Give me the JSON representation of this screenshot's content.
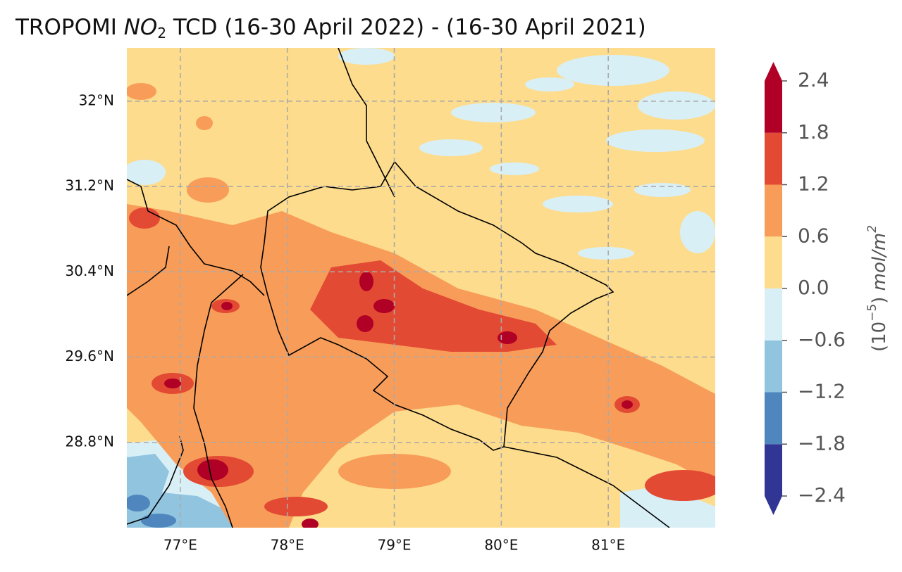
{
  "title": {
    "prefix": "TROPOMI ",
    "species": "NO",
    "subscript": "2",
    "suffix": " TCD (16-30 April 2022) - (16-30 April 2021)"
  },
  "map": {
    "xlim": [
      76.5,
      82
    ],
    "ylim": [
      28,
      32.5
    ],
    "xticks": [
      {
        "value": 77,
        "label": "77°E"
      },
      {
        "value": 78,
        "label": "78°E"
      },
      {
        "value": 79,
        "label": "79°E"
      },
      {
        "value": 80,
        "label": "80°E"
      },
      {
        "value": 81,
        "label": "81°E"
      }
    ],
    "yticks": [
      {
        "value": 28.8,
        "label": "28.8°N"
      },
      {
        "value": 29.6,
        "label": "29.6°N"
      },
      {
        "value": 30.4,
        "label": "30.4°N"
      },
      {
        "value": 31.2,
        "label": "31.2°N"
      },
      {
        "value": 32,
        "label": "32°N"
      }
    ],
    "grid": true,
    "border_color": "#000000",
    "grid_color": "#aaaaaa"
  },
  "colorbar": {
    "levels": [
      {
        "value": -2.4,
        "label": "−2.4"
      },
      {
        "value": -1.8,
        "label": "−1.8"
      },
      {
        "value": -1.2,
        "label": "−1.2"
      },
      {
        "value": -0.6,
        "label": "−0.6"
      },
      {
        "value": 0,
        "label": "0.0"
      },
      0.6,
      1.2,
      1.8,
      2.4
    ],
    "colors": [
      "#313695",
      "#4f86bd",
      "#91c4df",
      "#d9eff6",
      "#fddc8d",
      "#f89d59",
      "#e34a33",
      "#b10026"
    ],
    "extend": "both",
    "label": {
      "open": "(10",
      "exponent": "−5",
      "close": ") ",
      "unit": "mol/m",
      "unit_exponent": "2"
    }
  }
}
